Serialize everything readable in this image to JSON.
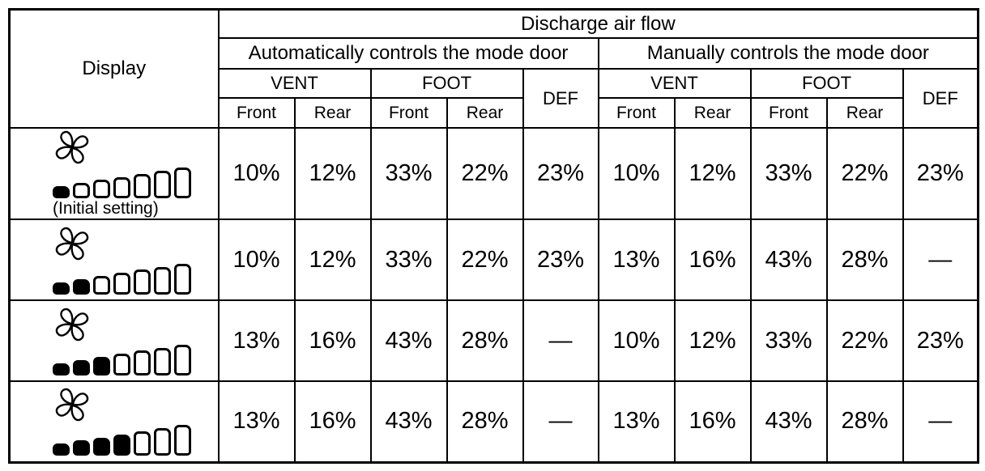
{
  "table": {
    "display_header": "Display",
    "headers": {
      "discharge": "Discharge air flow",
      "auto_group": "Automatically controls the mode door",
      "manual_group": "Manually controls the mode door",
      "vent": "VENT",
      "foot": "FOOT",
      "def": "DEF",
      "front": "Front",
      "rear": "Rear"
    },
    "rows": [
      {
        "fan_level": 1,
        "segments_total": 7,
        "caption": "(Initial setting)",
        "auto": [
          "10%",
          "12%",
          "33%",
          "22%",
          "23%"
        ],
        "manual": [
          "10%",
          "12%",
          "33%",
          "22%",
          "23%"
        ]
      },
      {
        "fan_level": 2,
        "segments_total": 7,
        "auto": [
          "10%",
          "12%",
          "33%",
          "22%",
          "23%"
        ],
        "manual": [
          "13%",
          "16%",
          "43%",
          "28%",
          "—"
        ]
      },
      {
        "fan_level": 3,
        "segments_total": 7,
        "auto": [
          "13%",
          "16%",
          "43%",
          "28%",
          "—"
        ],
        "manual": [
          "10%",
          "12%",
          "33%",
          "22%",
          "23%"
        ]
      },
      {
        "fan_level": 4,
        "segments_total": 7,
        "auto": [
          "13%",
          "16%",
          "43%",
          "28%",
          "—"
        ],
        "manual": [
          "13%",
          "16%",
          "43%",
          "28%",
          "—"
        ]
      }
    ]
  },
  "colors": {
    "ink": "#000000",
    "background": "#ffffff"
  }
}
